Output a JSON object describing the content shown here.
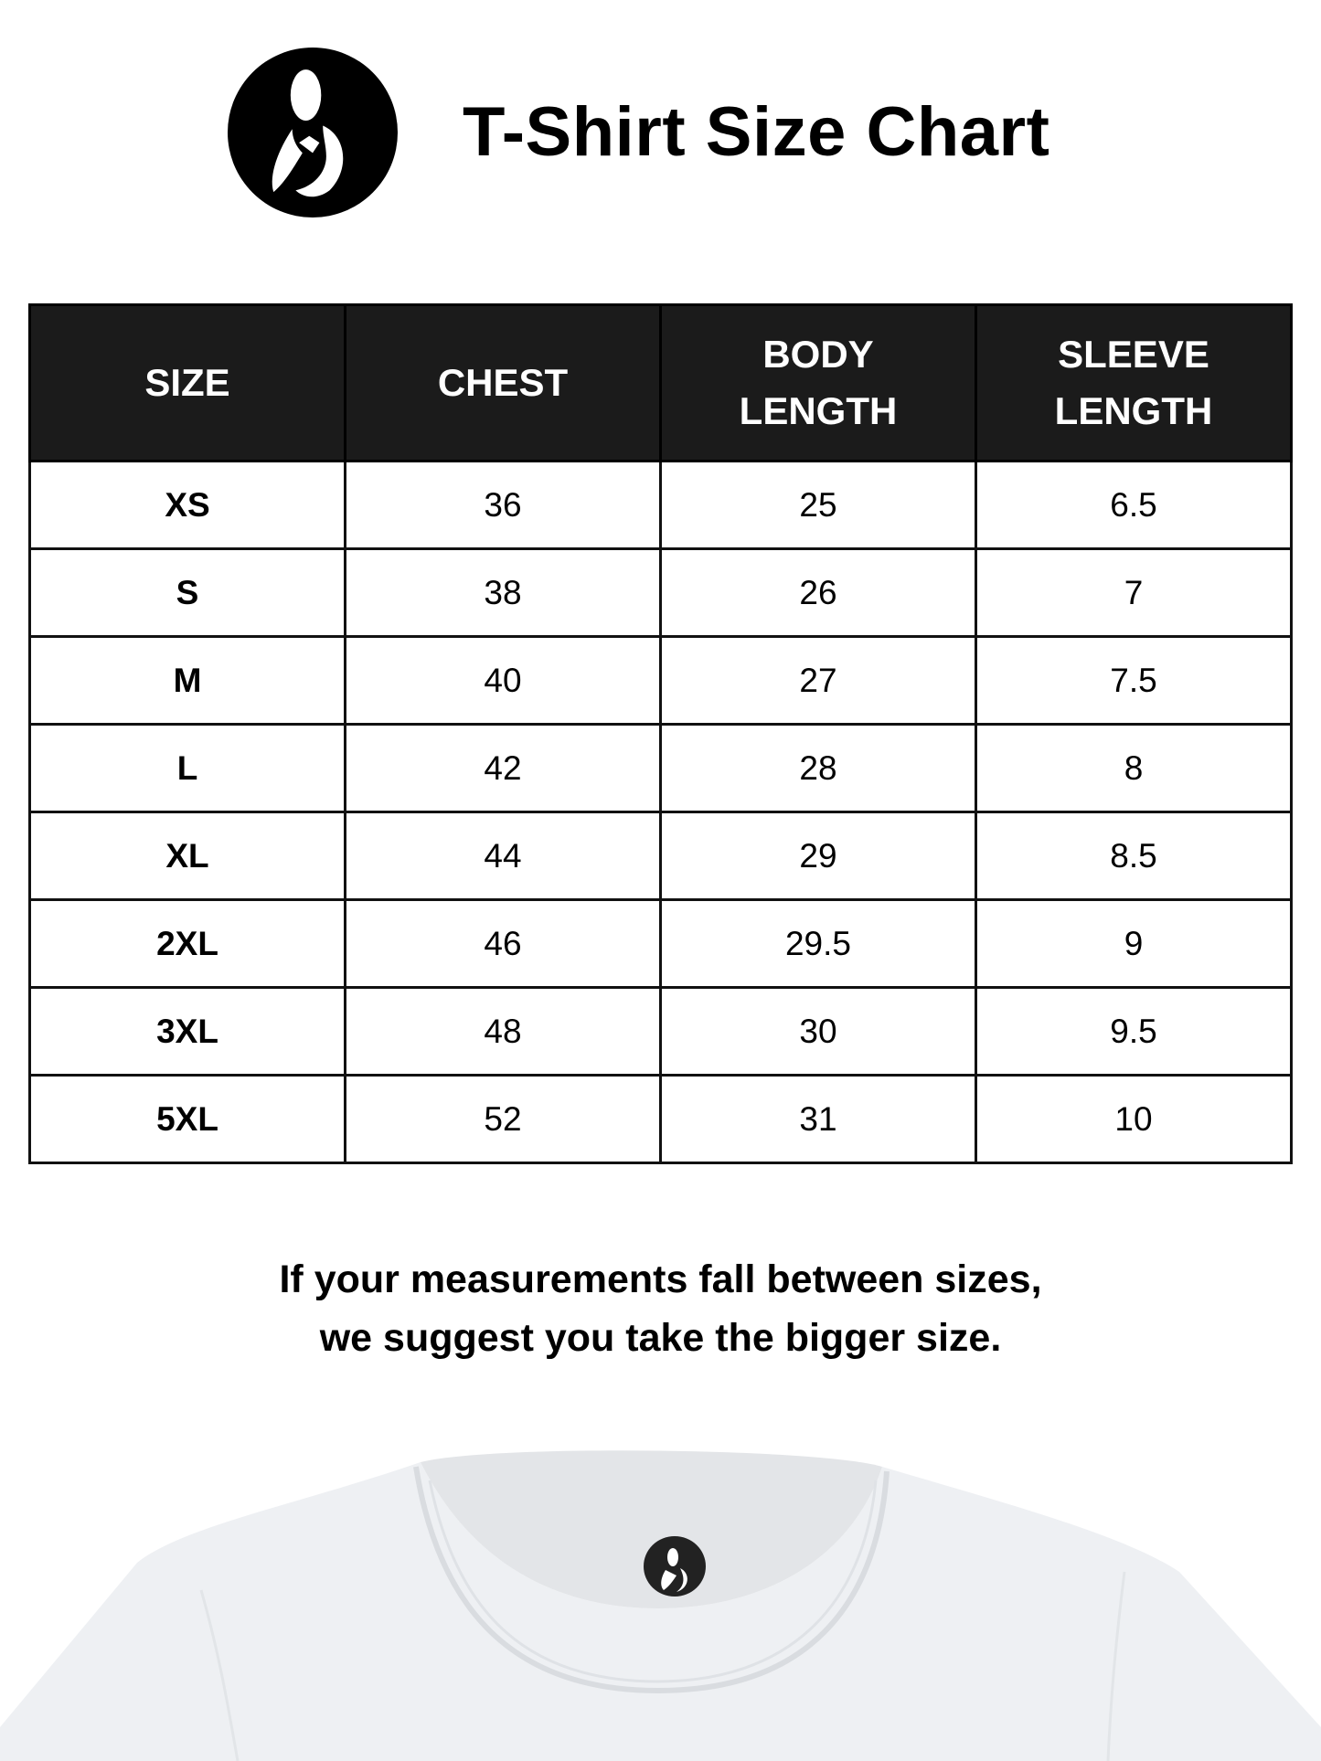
{
  "header": {
    "title": "T-Shirt Size Chart",
    "logo_icon": "mother-child-logo-icon"
  },
  "table": {
    "columns": [
      [
        "SIZE"
      ],
      [
        "CHEST"
      ],
      [
        "BODY",
        "LENGTH"
      ],
      [
        "SLEEVE",
        "LENGTH"
      ]
    ],
    "rows": [
      [
        "XS",
        "36",
        "25",
        "6.5"
      ],
      [
        "S",
        "38",
        "26",
        "7"
      ],
      [
        "M",
        "40",
        "27",
        "7.5"
      ],
      [
        "L",
        "42",
        "28",
        "8"
      ],
      [
        "XL",
        "44",
        "29",
        "8.5"
      ],
      [
        "2XL",
        "46",
        "29.5",
        "9"
      ],
      [
        "3XL",
        "48",
        "30",
        "9.5"
      ],
      [
        "5XL",
        "52",
        "31",
        "10"
      ]
    ]
  },
  "note": {
    "line1": "If your measurements fall between sizes,",
    "line2": "we suggest you take the bigger size."
  },
  "colors": {
    "header_bg": "#1b1b1b",
    "text": "#000000",
    "shirt": "#eef0f3"
  }
}
